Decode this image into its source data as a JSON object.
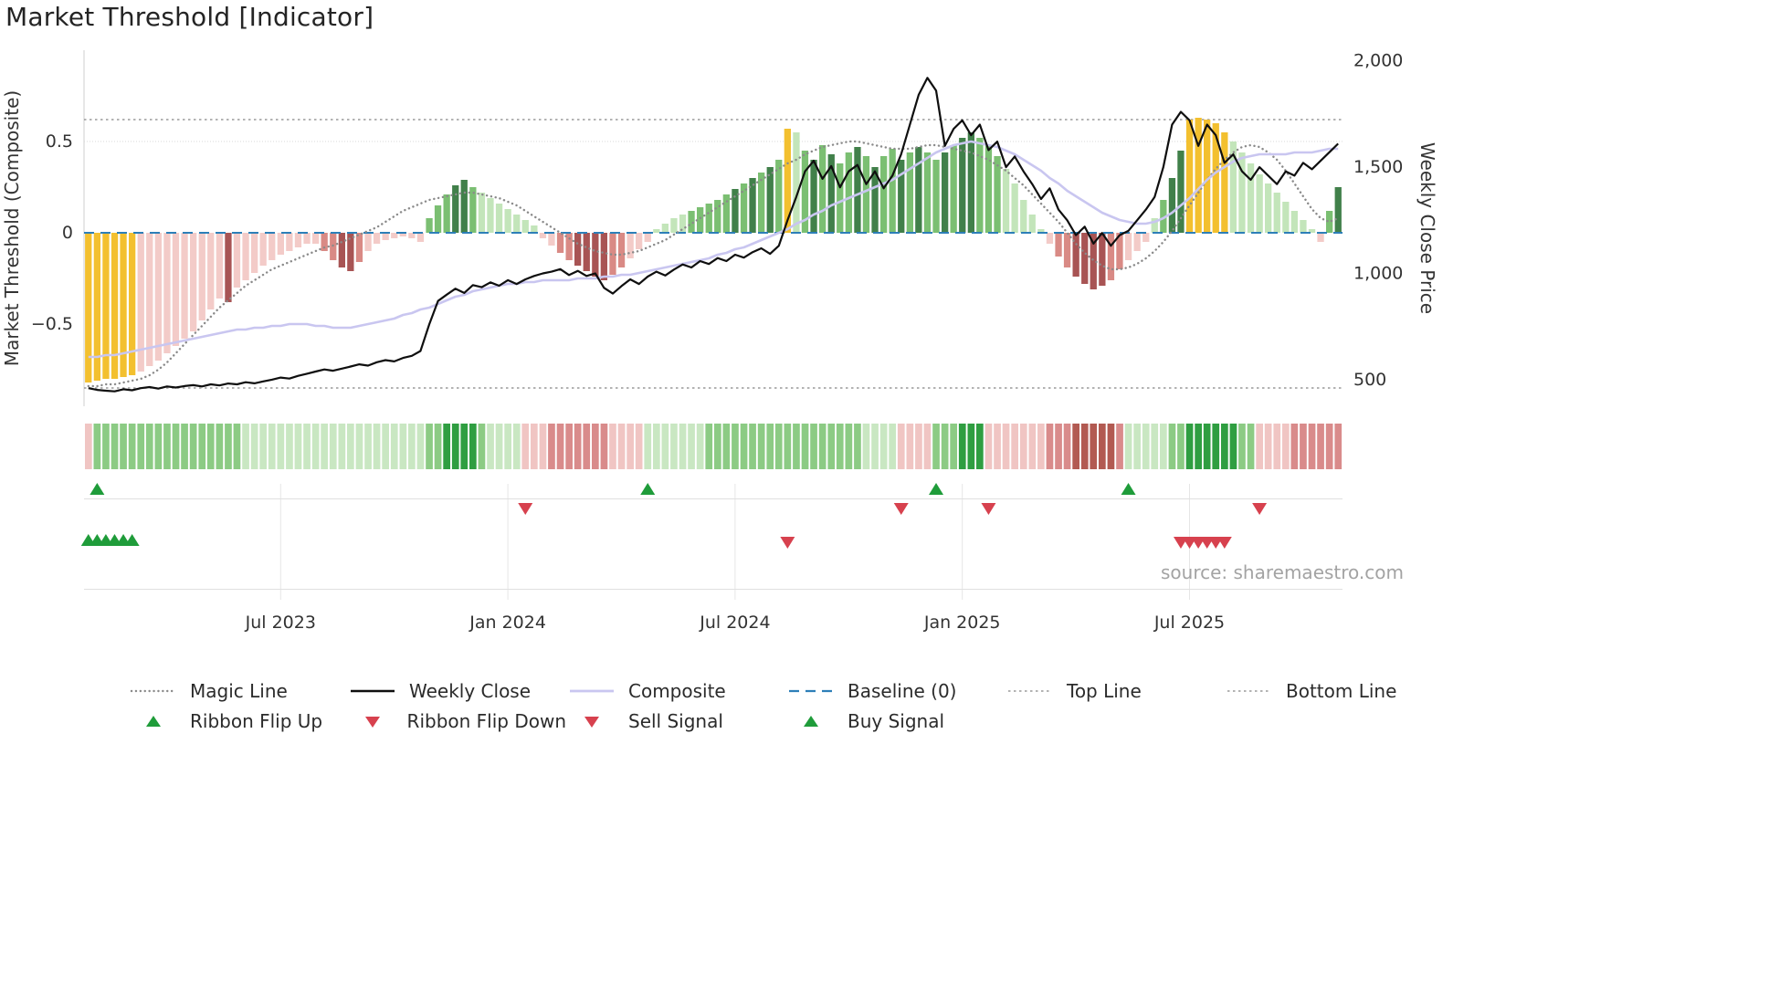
{
  "title": "Market Threshold [Indicator]",
  "source_text": "source: sharemaestro.com",
  "chart_data": {
    "type": "bar",
    "title": "Market Threshold [Indicator]",
    "left_axis": {
      "label": "Market Threshold (Composite)",
      "min": -0.95,
      "max": 1.0,
      "ticks": [
        {
          "v": 0.5,
          "label": "0.5"
        },
        {
          "v": 0,
          "label": "0"
        },
        {
          "v": -0.5,
          "label": "−0.5"
        }
      ]
    },
    "right_axis": {
      "label": "Weekly Close Price",
      "min": 375,
      "max": 2050,
      "ticks": [
        {
          "v": 2000,
          "label": "2,000"
        },
        {
          "v": 1500,
          "label": "1,500"
        },
        {
          "v": 1000,
          "label": "1,000"
        },
        {
          "v": 500,
          "label": "500"
        }
      ]
    },
    "x_ticks": [
      {
        "i": 22,
        "label": "Jul 2023"
      },
      {
        "i": 48,
        "label": "Jan 2024"
      },
      {
        "i": 74,
        "label": "Jul 2024"
      },
      {
        "i": 100,
        "label": "Jan 2025"
      },
      {
        "i": 126,
        "label": "Jul 2025"
      }
    ],
    "ref_lines": {
      "baseline": 0,
      "top_line": 0.62,
      "bottom_line": -0.85,
      "upper_grid": 0.5
    },
    "threshold": [
      -0.82,
      -0.81,
      -0.8,
      -0.8,
      -0.79,
      -0.78,
      -0.76,
      -0.73,
      -0.7,
      -0.66,
      -0.62,
      -0.58,
      -0.54,
      -0.48,
      -0.42,
      -0.36,
      -0.38,
      -0.3,
      -0.26,
      -0.22,
      -0.18,
      -0.15,
      -0.12,
      -0.1,
      -0.08,
      -0.06,
      -0.06,
      -0.1,
      -0.15,
      -0.19,
      -0.21,
      -0.16,
      -0.1,
      -0.06,
      -0.04,
      -0.03,
      -0.02,
      -0.03,
      -0.05,
      0.08,
      0.15,
      0.21,
      0.26,
      0.29,
      0.25,
      0.22,
      0.19,
      0.16,
      0.13,
      0.1,
      0.07,
      0.04,
      -0.03,
      -0.07,
      -0.11,
      -0.15,
      -0.18,
      -0.21,
      -0.24,
      -0.26,
      -0.23,
      -0.19,
      -0.14,
      -0.09,
      -0.05,
      0.02,
      0.05,
      0.08,
      0.1,
      0.12,
      0.14,
      0.16,
      0.18,
      0.21,
      0.24,
      0.27,
      0.3,
      0.33,
      0.36,
      0.4,
      0.57,
      0.55,
      0.45,
      0.4,
      0.48,
      0.43,
      0.38,
      0.44,
      0.47,
      0.42,
      0.36,
      0.42,
      0.46,
      0.4,
      0.44,
      0.47,
      0.44,
      0.4,
      0.44,
      0.48,
      0.52,
      0.55,
      0.52,
      0.48,
      0.42,
      0.35,
      0.27,
      0.18,
      0.1,
      0.02,
      -0.06,
      -0.13,
      -0.19,
      -0.24,
      -0.28,
      -0.31,
      -0.29,
      -0.26,
      -0.2,
      -0.15,
      -0.1,
      -0.05,
      0.08,
      0.18,
      0.3,
      0.45,
      0.62,
      0.63,
      0.62,
      0.6,
      0.55,
      0.5,
      0.44,
      0.38,
      0.32,
      0.27,
      0.22,
      0.17,
      0.12,
      0.07,
      0.02,
      -0.05,
      0.12,
      0.25
    ],
    "shade": [
      3,
      3,
      3,
      3,
      3,
      3,
      1,
      1,
      1,
      1,
      1,
      1,
      1,
      1,
      1,
      1,
      3,
      1,
      1,
      1,
      1,
      1,
      1,
      1,
      1,
      1,
      1,
      2,
      2,
      3,
      3,
      2,
      1,
      1,
      1,
      1,
      1,
      1,
      1,
      2,
      2,
      2,
      3,
      3,
      2,
      1,
      1,
      1,
      1,
      1,
      1,
      1,
      1,
      1,
      2,
      2,
      3,
      3,
      3,
      3,
      2,
      2,
      1,
      1,
      1,
      1,
      1,
      1,
      1,
      2,
      2,
      2,
      2,
      2,
      3,
      2,
      3,
      2,
      3,
      2,
      3,
      1,
      2,
      3,
      2,
      3,
      2,
      2,
      3,
      2,
      3,
      2,
      2,
      3,
      2,
      3,
      2,
      2,
      3,
      2,
      3,
      3,
      2,
      2,
      2,
      1,
      1,
      1,
      1,
      1,
      1,
      2,
      2,
      3,
      3,
      3,
      3,
      2,
      2,
      1,
      1,
      1,
      1,
      2,
      3,
      3,
      3,
      3,
      3,
      3,
      3,
      1,
      1,
      1,
      1,
      1,
      1,
      1,
      1,
      1,
      1,
      1,
      2,
      3
    ],
    "weekly_close": [
      460,
      452,
      448,
      445,
      455,
      450,
      460,
      465,
      458,
      468,
      463,
      470,
      474,
      468,
      478,
      473,
      482,
      478,
      488,
      483,
      492,
      500,
      510,
      505,
      518,
      528,
      538,
      548,
      542,
      552,
      562,
      572,
      566,
      582,
      592,
      586,
      602,
      612,
      635,
      760,
      870,
      900,
      928,
      908,
      945,
      935,
      958,
      942,
      968,
      950,
      972,
      988,
      1000,
      1008,
      1020,
      992,
      1012,
      988,
      1000,
      932,
      905,
      940,
      972,
      950,
      985,
      1008,
      990,
      1018,
      1042,
      1028,
      1058,
      1044,
      1072,
      1058,
      1088,
      1074,
      1100,
      1118,
      1092,
      1130,
      1250,
      1360,
      1480,
      1530,
      1445,
      1505,
      1405,
      1480,
      1510,
      1420,
      1480,
      1400,
      1460,
      1560,
      1700,
      1840,
      1920,
      1860,
      1600,
      1680,
      1720,
      1650,
      1700,
      1580,
      1620,
      1500,
      1550,
      1480,
      1420,
      1350,
      1400,
      1300,
      1250,
      1180,
      1220,
      1140,
      1190,
      1130,
      1180,
      1200,
      1250,
      1300,
      1360,
      1500,
      1700,
      1760,
      1720,
      1600,
      1700,
      1650,
      1520,
      1560,
      1480,
      1440,
      1500,
      1460,
      1420,
      1480,
      1460,
      1520,
      1490,
      1530,
      1570,
      1610
    ],
    "magic": [
      -0.84,
      -0.84,
      -0.83,
      -0.83,
      -0.82,
      -0.81,
      -0.8,
      -0.78,
      -0.75,
      -0.71,
      -0.66,
      -0.61,
      -0.56,
      -0.51,
      -0.46,
      -0.41,
      -0.37,
      -0.33,
      -0.29,
      -0.26,
      -0.23,
      -0.2,
      -0.18,
      -0.16,
      -0.14,
      -0.12,
      -0.1,
      -0.08,
      -0.07,
      -0.05,
      -0.03,
      -0.01,
      0.01,
      0.03,
      0.06,
      0.09,
      0.12,
      0.14,
      0.16,
      0.18,
      0.19,
      0.2,
      0.21,
      0.22,
      0.22,
      0.21,
      0.2,
      0.19,
      0.17,
      0.15,
      0.12,
      0.09,
      0.06,
      0.03,
      0.0,
      -0.03,
      -0.06,
      -0.08,
      -0.1,
      -0.11,
      -0.12,
      -0.12,
      -0.11,
      -0.1,
      -0.08,
      -0.06,
      -0.04,
      -0.01,
      0.02,
      0.05,
      0.08,
      0.11,
      0.14,
      0.17,
      0.2,
      0.23,
      0.26,
      0.29,
      0.32,
      0.35,
      0.38,
      0.4,
      0.43,
      0.45,
      0.47,
      0.48,
      0.49,
      0.5,
      0.5,
      0.49,
      0.48,
      0.47,
      0.46,
      0.46,
      0.46,
      0.47,
      0.48,
      0.48,
      0.47,
      0.46,
      0.45,
      0.44,
      0.42,
      0.4,
      0.37,
      0.34,
      0.3,
      0.26,
      0.21,
      0.16,
      0.11,
      0.06,
      0.0,
      -0.06,
      -0.11,
      -0.15,
      -0.18,
      -0.2,
      -0.2,
      -0.19,
      -0.17,
      -0.14,
      -0.1,
      -0.05,
      0.01,
      0.08,
      0.15,
      0.22,
      0.29,
      0.35,
      0.4,
      0.44,
      0.47,
      0.48,
      0.47,
      0.44,
      0.4,
      0.34,
      0.27,
      0.2,
      0.13,
      0.08,
      0.06,
      0.08
    ],
    "composite": [
      -0.68,
      -0.68,
      -0.67,
      -0.67,
      -0.66,
      -0.65,
      -0.64,
      -0.63,
      -0.62,
      -0.61,
      -0.6,
      -0.59,
      -0.58,
      -0.57,
      -0.56,
      -0.55,
      -0.54,
      -0.53,
      -0.53,
      -0.52,
      -0.52,
      -0.51,
      -0.51,
      -0.5,
      -0.5,
      -0.5,
      -0.51,
      -0.51,
      -0.52,
      -0.52,
      -0.52,
      -0.51,
      -0.5,
      -0.49,
      -0.48,
      -0.47,
      -0.45,
      -0.44,
      -0.42,
      -0.41,
      -0.39,
      -0.37,
      -0.35,
      -0.34,
      -0.32,
      -0.31,
      -0.3,
      -0.29,
      -0.28,
      -0.28,
      -0.27,
      -0.27,
      -0.26,
      -0.26,
      -0.26,
      -0.26,
      -0.25,
      -0.25,
      -0.25,
      -0.24,
      -0.24,
      -0.23,
      -0.23,
      -0.22,
      -0.21,
      -0.2,
      -0.19,
      -0.18,
      -0.17,
      -0.16,
      -0.15,
      -0.14,
      -0.12,
      -0.11,
      -0.09,
      -0.08,
      -0.06,
      -0.04,
      -0.02,
      0.0,
      0.02,
      0.05,
      0.07,
      0.1,
      0.12,
      0.15,
      0.17,
      0.19,
      0.21,
      0.23,
      0.25,
      0.27,
      0.29,
      0.32,
      0.35,
      0.38,
      0.41,
      0.44,
      0.46,
      0.48,
      0.49,
      0.5,
      0.49,
      0.48,
      0.47,
      0.45,
      0.43,
      0.4,
      0.37,
      0.34,
      0.3,
      0.27,
      0.23,
      0.2,
      0.17,
      0.14,
      0.11,
      0.09,
      0.07,
      0.06,
      0.05,
      0.05,
      0.06,
      0.08,
      0.11,
      0.15,
      0.19,
      0.24,
      0.29,
      0.33,
      0.36,
      0.39,
      0.41,
      0.42,
      0.43,
      0.43,
      0.43,
      0.43,
      0.44,
      0.44,
      0.44,
      0.45,
      0.46,
      0.46
    ],
    "ribbon": [
      -1,
      2,
      2,
      2,
      2,
      2,
      2,
      2,
      2,
      2,
      2,
      2,
      2,
      2,
      2,
      2,
      2,
      2,
      1,
      1,
      1,
      1,
      1,
      1,
      1,
      1,
      1,
      1,
      1,
      1,
      1,
      1,
      1,
      1,
      1,
      1,
      1,
      1,
      1,
      2,
      2,
      3,
      3,
      3,
      3,
      2,
      1,
      1,
      1,
      1,
      -1,
      -1,
      -1,
      -2,
      -2,
      -2,
      -2,
      -2,
      -2,
      -2,
      -1,
      -1,
      -1,
      -1,
      1,
      1,
      1,
      1,
      1,
      1,
      1,
      2,
      2,
      2,
      2,
      2,
      2,
      2,
      2,
      2,
      2,
      2,
      2,
      2,
      2,
      2,
      2,
      2,
      2,
      1,
      1,
      1,
      1,
      -1,
      -1,
      -1,
      -1,
      2,
      2,
      2,
      3,
      3,
      3,
      -1,
      -1,
      -1,
      -1,
      -1,
      -1,
      -1,
      -2,
      -2,
      -2,
      -3,
      -3,
      -3,
      -3,
      -3,
      -2,
      1,
      1,
      1,
      1,
      1,
      2,
      2,
      3,
      3,
      3,
      3,
      3,
      3,
      2,
      2,
      -1,
      -1,
      -1,
      -1,
      -2,
      -2,
      -2,
      -2,
      -2,
      -2
    ],
    "signals": {
      "ribbon_flip_up": [
        1,
        64,
        97,
        119
      ],
      "ribbon_flip_down": [
        50,
        93,
        103,
        134
      ],
      "buy": [
        0,
        1,
        2,
        3,
        4,
        5
      ],
      "sell": [
        80,
        125,
        126,
        127,
        128,
        129,
        130
      ],
      "gold_bars": [
        0,
        1,
        2,
        3,
        4,
        5,
        80,
        126,
        127,
        128,
        129,
        130
      ]
    },
    "colors": {
      "gold": "#f3c02f",
      "bar_green": [
        "#c3e5ba",
        "#7bbf72",
        "#41804a"
      ],
      "bar_red": [
        "#f3cbc8",
        "#d98a85",
        "#a85454"
      ],
      "ribbon_green": [
        "#c9e7c2",
        "#8ccb84",
        "#2f9e41"
      ],
      "ribbon_red": [
        "#f0c5c3",
        "#d98b8b",
        "#b25a52"
      ],
      "weekly_close": "#0f0f0f",
      "composite_line": "#c9c6f0",
      "magic_line": "#8a8a8a",
      "baseline": "#2d7fb8",
      "top_bottom_line": "#9a9a9a",
      "signal_green": "#1f9c3a",
      "signal_red": "#d7414e"
    }
  },
  "legend": {
    "rows": [
      [
        {
          "id": "magic-line",
          "label": "Magic Line",
          "swatch": "dotted-gray"
        },
        {
          "id": "weekly-close",
          "label": "Weekly Close",
          "swatch": "solid-black"
        },
        {
          "id": "composite",
          "label": "Composite",
          "swatch": "solid-lavender"
        },
        {
          "id": "baseline",
          "label": "Baseline (0)",
          "swatch": "dashed-blue"
        },
        {
          "id": "top-line",
          "label": "Top Line",
          "swatch": "dashed-gray"
        },
        {
          "id": "bottom-line",
          "label": "Bottom Line",
          "swatch": "dashed-gray"
        }
      ],
      [
        {
          "id": "ribbon-flip-up",
          "label": "Ribbon Flip Up",
          "swatch": "tri-up"
        },
        {
          "id": "ribbon-flip-down",
          "label": "Ribbon Flip Down",
          "swatch": "tri-down"
        },
        {
          "id": "sell-signal",
          "label": "Sell Signal",
          "swatch": "tri-down"
        },
        {
          "id": "buy-signal",
          "label": "Buy Signal",
          "swatch": "tri-up"
        }
      ]
    ]
  }
}
